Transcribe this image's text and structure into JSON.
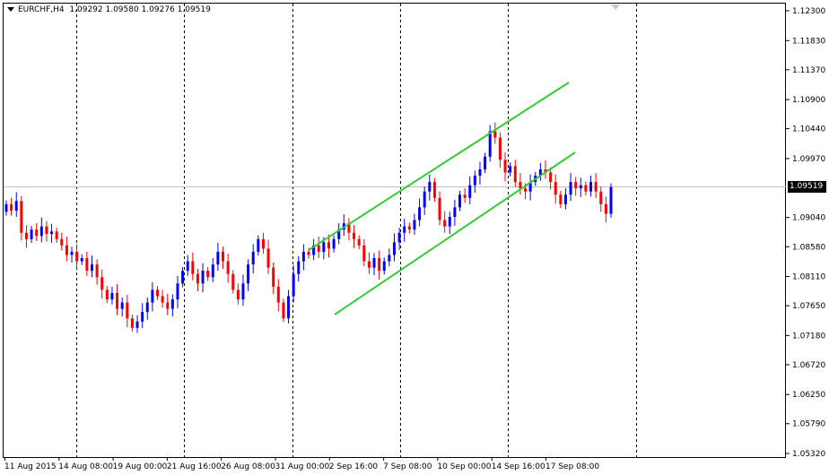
{
  "window": {
    "symbol": "EURCHF,H4",
    "ohlc": "1.09292 1.09580 1.09276 1.09519",
    "current_price_label": "1.09519"
  },
  "colors": {
    "background": "#ffffff",
    "bull_candle": "#0000ff",
    "bear_candle": "#ff0000",
    "channel_lines": "#32cd32",
    "grid": "#000000",
    "bid_line": "#c0c0c0"
  },
  "icons": {
    "title_arrow": "dropdown-triangle-icon",
    "scroll": "chart-shift-marker-icon"
  },
  "chart_data": {
    "type": "candlestick",
    "y_ticks": [
      "1.12300",
      "1.11830",
      "1.11370",
      "1.10900",
      "1.10440",
      "1.09970",
      "1.09040",
      "1.08580",
      "1.08110",
      "1.07650",
      "1.07180",
      "1.06720",
      "1.06250",
      "1.05790",
      "1.05320"
    ],
    "x_ticks": [
      "11 Aug 2015",
      "14 Aug 08:00",
      "19 Aug 00:00",
      "21 Aug 16:00",
      "26 Aug 08:00",
      "31 Aug 00:00",
      "2 Sep 16:00",
      "7 Sep 08:00",
      "10 Sep 00:00",
      "14 Sep 16:00",
      "17 Sep 08:00"
    ],
    "ylim": [
      1.0532,
      1.123
    ],
    "grid": "vertical dashed",
    "current_price": 1.09519,
    "closes": [
      1.0925,
      1.0915,
      1.093,
      1.088,
      1.087,
      1.0885,
      1.0875,
      1.089,
      1.0878,
      1.0882,
      1.087,
      1.086,
      1.0845,
      1.085,
      1.0835,
      1.084,
      1.082,
      1.083,
      1.081,
      1.079,
      1.0775,
      1.0785,
      1.076,
      1.077,
      1.0745,
      1.073,
      1.074,
      1.0755,
      1.077,
      1.079,
      1.078,
      1.077,
      1.076,
      1.0775,
      1.08,
      1.082,
      1.0835,
      1.0815,
      1.08,
      1.082,
      1.081,
      1.083,
      1.085,
      1.0835,
      1.0815,
      1.079,
      1.0775,
      1.08,
      1.083,
      1.085,
      1.087,
      1.0855,
      1.0825,
      1.0795,
      1.077,
      1.0745,
      1.078,
      1.0815,
      1.0835,
      1.085,
      1.0845,
      1.086,
      1.085,
      1.0865,
      1.0855,
      1.087,
      1.0885,
      1.0895,
      1.088,
      1.087,
      1.086,
      1.0835,
      1.0825,
      1.084,
      1.082,
      1.0835,
      1.0845,
      1.0865,
      1.088,
      1.089,
      1.0885,
      1.09,
      1.092,
      1.0945,
      1.096,
      1.0935,
      1.09,
      1.089,
      1.0905,
      1.092,
      1.094,
      1.0935,
      1.0955,
      1.097,
      1.098,
      1.1,
      1.104,
      1.103,
      1.0995,
      1.0975,
      1.0985,
      1.096,
      1.095,
      1.0945,
      1.096,
      1.097,
      1.098,
      1.0975,
      1.096,
      1.094,
      1.0925,
      1.094,
      1.096,
      1.095,
      1.0955,
      1.0945,
      1.096,
      1.0945,
      1.0925,
      1.091,
      1.0952
    ]
  }
}
